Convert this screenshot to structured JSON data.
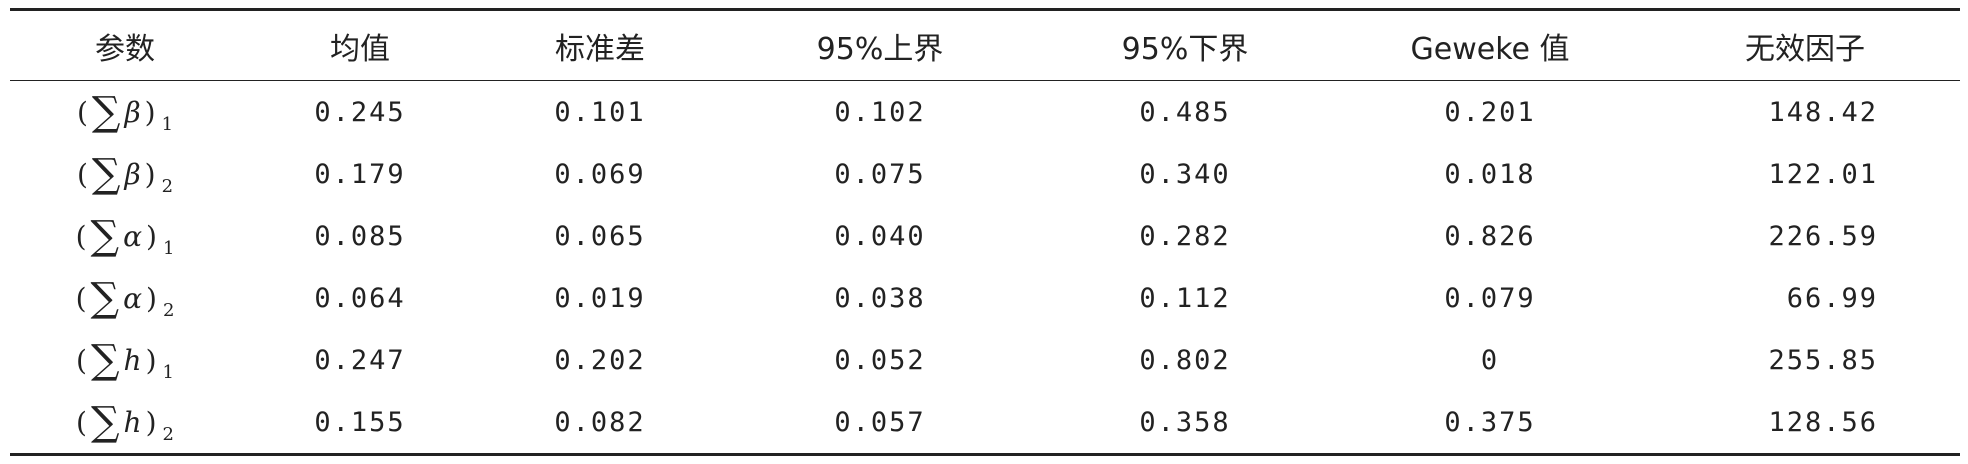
{
  "table": {
    "headers": [
      "参数",
      "均值",
      "标准差",
      "95%上界",
      "95%下界",
      "Geweke 值",
      "无效因子"
    ],
    "rows": [
      {
        "paren_open": "(",
        "sigma": "∑",
        "symbol": "β",
        "paren_close": ")",
        "subscript": "1",
        "values": [
          "0.245",
          "0.101",
          "0.102",
          "0.485",
          "0.201",
          "148.42"
        ]
      },
      {
        "paren_open": "(",
        "sigma": "∑",
        "symbol": "β",
        "paren_close": ")",
        "subscript": "2",
        "values": [
          "0.179",
          "0.069",
          "0.075",
          "0.340",
          "0.018",
          "122.01"
        ]
      },
      {
        "paren_open": "(",
        "sigma": "∑",
        "symbol": "α",
        "paren_close": ")",
        "subscript": "1",
        "values": [
          "0.085",
          "0.065",
          "0.040",
          "0.282",
          "0.826",
          "226.59"
        ]
      },
      {
        "paren_open": "(",
        "sigma": "∑",
        "symbol": "α",
        "paren_close": ")",
        "subscript": "2",
        "values": [
          "0.064",
          "0.019",
          "0.038",
          "0.112",
          "0.079",
          "66.99"
        ]
      },
      {
        "paren_open": "(",
        "sigma": "∑",
        "symbol": "h",
        "paren_close": ")",
        "subscript": "1",
        "values": [
          "0.247",
          "0.202",
          "0.052",
          "0.802",
          "0",
          "255.85"
        ]
      },
      {
        "paren_open": "(",
        "sigma": "∑",
        "symbol": "h",
        "paren_close": ")",
        "subscript": "2",
        "values": [
          "0.155",
          "0.082",
          "0.057",
          "0.358",
          "0.375",
          "128.56"
        ]
      }
    ]
  }
}
